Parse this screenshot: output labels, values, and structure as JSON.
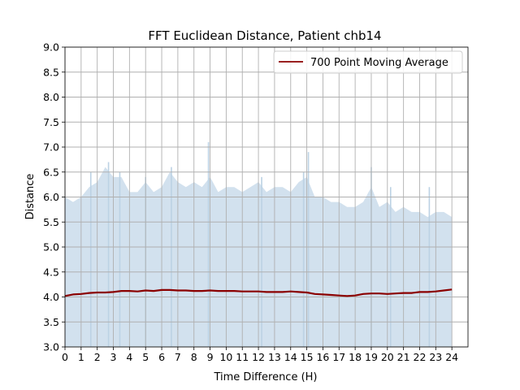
{
  "chart_data": {
    "type": "area",
    "title": "FFT Euclidean Distance, Patient chb14",
    "xlabel": "Time Difference (H)",
    "ylabel": "Distance",
    "xlim": [
      0,
      25
    ],
    "ylim": [
      3.0,
      9.0
    ],
    "x_ticks": [
      "0",
      "1",
      "2",
      "3",
      "4",
      "5",
      "6",
      "7",
      "8",
      "9",
      "10",
      "11",
      "12",
      "13",
      "14",
      "15",
      "16",
      "17",
      "18",
      "19",
      "20",
      "21",
      "22",
      "23",
      "24"
    ],
    "y_ticks": [
      "3.0",
      "3.5",
      "4.0",
      "4.5",
      "5.0",
      "5.5",
      "6.0",
      "6.5",
      "7.0",
      "7.5",
      "8.0",
      "8.5",
      "9.0"
    ],
    "grid": true,
    "legend_position": "top-right",
    "colors": {
      "area": "#d2e1ee",
      "area_spike": "#bcd2e4",
      "average": "#8b0000",
      "grid": "#b0b0b0"
    },
    "series": [
      {
        "type": "area",
        "x": [
          0.0,
          0.5,
          1.0,
          1.5,
          2.0,
          2.5,
          3.0,
          3.5,
          4.0,
          4.5,
          5.0,
          5.5,
          6.0,
          6.5,
          7.0,
          7.5,
          8.0,
          8.5,
          9.0,
          9.5,
          10.0,
          10.5,
          11.0,
          11.5,
          12.0,
          12.5,
          13.0,
          13.5,
          14.0,
          14.5,
          15.0,
          15.5,
          16.0,
          16.5,
          17.0,
          17.5,
          18.0,
          18.5,
          19.0,
          19.5,
          20.0,
          20.5,
          21.0,
          21.5,
          22.0,
          22.5,
          23.0,
          23.5,
          24.0
        ],
        "values": [
          6.0,
          5.9,
          6.0,
          6.2,
          6.3,
          6.6,
          6.4,
          6.4,
          6.1,
          6.1,
          6.3,
          6.1,
          6.2,
          6.5,
          6.3,
          6.2,
          6.3,
          6.2,
          6.4,
          6.1,
          6.2,
          6.2,
          6.1,
          6.2,
          6.3,
          6.1,
          6.2,
          6.2,
          6.1,
          6.3,
          6.4,
          6.0,
          6.0,
          5.9,
          5.9,
          5.8,
          5.8,
          5.9,
          6.2,
          5.8,
          5.9,
          5.7,
          5.8,
          5.7,
          5.7,
          5.6,
          5.7,
          5.7,
          5.6
        ],
        "spikes": [
          {
            "x": 1.6,
            "value": 6.5
          },
          {
            "x": 2.7,
            "value": 6.7
          },
          {
            "x": 3.4,
            "value": 6.5
          },
          {
            "x": 5.0,
            "value": 6.4
          },
          {
            "x": 6.6,
            "value": 6.6
          },
          {
            "x": 8.9,
            "value": 7.1
          },
          {
            "x": 12.2,
            "value": 6.4
          },
          {
            "x": 14.8,
            "value": 6.5
          },
          {
            "x": 15.1,
            "value": 6.9
          },
          {
            "x": 19.0,
            "value": 6.6
          },
          {
            "x": 20.2,
            "value": 6.2
          },
          {
            "x": 22.6,
            "value": 6.2
          }
        ]
      },
      {
        "name": "700 Point Moving Average",
        "type": "line",
        "x": [
          0.0,
          0.5,
          1.0,
          1.5,
          2.0,
          2.5,
          3.0,
          3.5,
          4.0,
          4.5,
          5.0,
          5.5,
          6.0,
          6.5,
          7.0,
          7.5,
          8.0,
          8.5,
          9.0,
          9.5,
          10.0,
          10.5,
          11.0,
          11.5,
          12.0,
          12.5,
          13.0,
          13.5,
          14.0,
          14.5,
          15.0,
          15.5,
          16.0,
          16.5,
          17.0,
          17.5,
          18.0,
          18.5,
          19.0,
          19.5,
          20.0,
          20.5,
          21.0,
          21.5,
          22.0,
          22.5,
          23.0,
          23.5,
          24.0
        ],
        "values": [
          4.02,
          4.05,
          4.06,
          4.08,
          4.09,
          4.09,
          4.1,
          4.12,
          4.12,
          4.11,
          4.13,
          4.12,
          4.14,
          4.14,
          4.13,
          4.13,
          4.12,
          4.12,
          4.13,
          4.12,
          4.12,
          4.12,
          4.11,
          4.11,
          4.11,
          4.1,
          4.1,
          4.1,
          4.11,
          4.1,
          4.09,
          4.06,
          4.05,
          4.04,
          4.03,
          4.02,
          4.03,
          4.06,
          4.07,
          4.07,
          4.06,
          4.07,
          4.08,
          4.08,
          4.1,
          4.1,
          4.11,
          4.13,
          4.15
        ]
      }
    ]
  }
}
